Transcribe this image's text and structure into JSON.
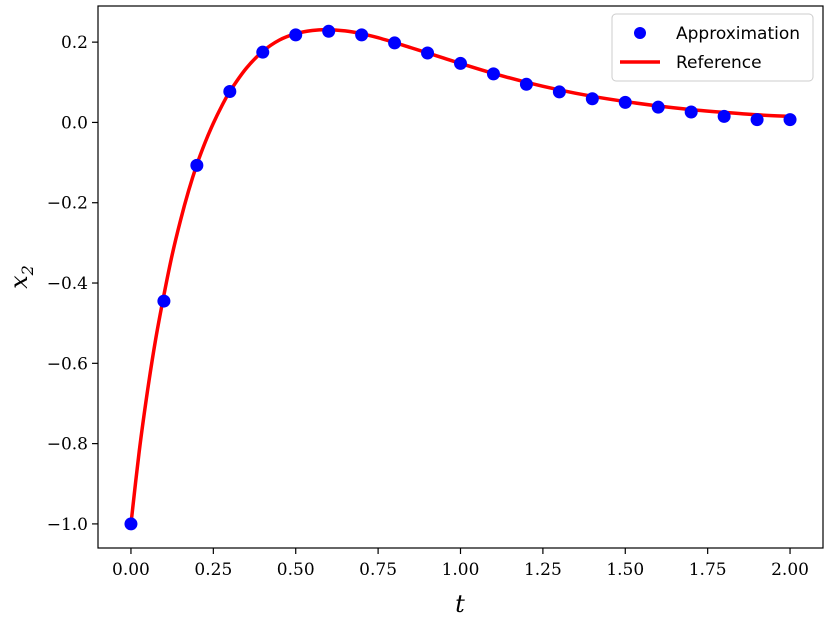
{
  "chart_data": {
    "type": "line",
    "xlabel": "t",
    "ylabel": "x",
    "ylabel_sub": "2",
    "xlim": [
      -0.1,
      2.1
    ],
    "ylim": [
      -1.06,
      0.29
    ],
    "xticks": [
      0.0,
      0.25,
      0.5,
      0.75,
      1.0,
      1.25,
      1.5,
      1.75,
      2.0
    ],
    "xtick_labels": [
      "0.00",
      "0.25",
      "0.50",
      "0.75",
      "1.00",
      "1.25",
      "1.50",
      "1.75",
      "2.00"
    ],
    "yticks": [
      -1.0,
      -0.8,
      -0.6,
      -0.4,
      -0.2,
      0.0,
      0.2
    ],
    "ytick_labels": [
      "−1.0",
      "−0.8",
      "−0.6",
      "−0.4",
      "−0.2",
      "0.0",
      "0.2"
    ],
    "grid": false,
    "legend_position": "top-right",
    "series": [
      {
        "name": "Approximation",
        "style": "markers",
        "color": "#0000ff",
        "x": [
          0.0,
          0.1,
          0.2,
          0.3,
          0.4,
          0.5,
          0.6,
          0.7,
          0.8,
          0.9,
          1.0,
          1.1,
          1.2,
          1.3,
          1.4,
          1.5,
          1.6,
          1.7,
          1.8,
          1.9,
          2.0
        ],
        "y": [
          -1.0,
          -0.445,
          -0.107,
          0.077,
          0.175,
          0.218,
          0.227,
          0.218,
          0.198,
          0.173,
          0.147,
          0.121,
          0.095,
          0.076,
          0.059,
          0.05,
          0.038,
          0.026,
          0.015,
          0.007,
          0.007
        ]
      },
      {
        "name": "Reference",
        "style": "line",
        "color": "#ff0000",
        "x": [
          0.0,
          0.025,
          0.05,
          0.075,
          0.1,
          0.125,
          0.15,
          0.175,
          0.2,
          0.225,
          0.25,
          0.275,
          0.3,
          0.35,
          0.4,
          0.45,
          0.5,
          0.55,
          0.6,
          0.65,
          0.7,
          0.75,
          0.8,
          0.85,
          0.9,
          0.95,
          1.0,
          1.1,
          1.2,
          1.3,
          1.4,
          1.5,
          1.6,
          1.7,
          1.8,
          1.9,
          2.0
        ],
        "y": [
          -1.0,
          -0.82,
          -0.67,
          -0.54,
          -0.43,
          -0.33,
          -0.245,
          -0.17,
          -0.105,
          -0.05,
          -0.002,
          0.04,
          0.077,
          0.135,
          0.177,
          0.205,
          0.221,
          0.229,
          0.231,
          0.228,
          0.221,
          0.211,
          0.199,
          0.186,
          0.173,
          0.16,
          0.147,
          0.122,
          0.1,
          0.081,
          0.065,
          0.052,
          0.041,
          0.032,
          0.025,
          0.019,
          0.015
        ]
      }
    ]
  }
}
